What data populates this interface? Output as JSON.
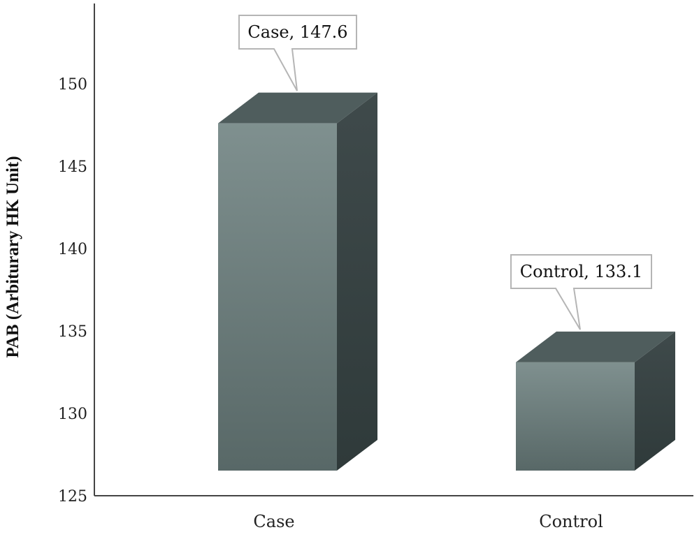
{
  "chart_data": {
    "type": "bar",
    "categories": [
      "Case",
      "Control"
    ],
    "values": [
      147.6,
      133.1
    ],
    "data_labels": [
      "Case, 147.6",
      "Control, 133.1"
    ],
    "title": "",
    "xlabel": "",
    "ylabel": "PAB (Arbiturary HK Unit)",
    "ylim": [
      125,
      155
    ],
    "yticks": [
      125,
      130,
      135,
      140,
      145,
      150
    ],
    "grid": false,
    "style": "3d-bar",
    "colors": {
      "front": "#6f807f",
      "side": "#3a4646",
      "top": "#4f5d5d",
      "axis": "#444444"
    }
  }
}
